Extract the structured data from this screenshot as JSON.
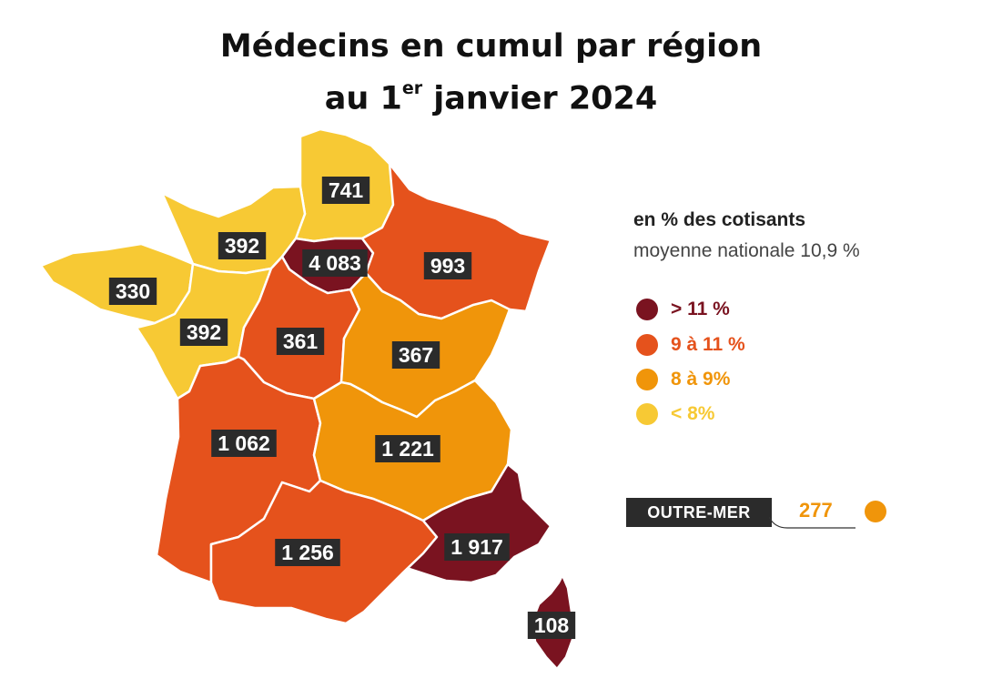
{
  "title": {
    "line1": "Médecins en cumul par région",
    "line2_prefix": "au 1",
    "line2_sup": "er",
    "line2_suffix": " janvier 2024"
  },
  "colors": {
    "over_11": "#7a1320",
    "from_9_to_11": "#e5521c",
    "from_8_to_9": "#f0950a",
    "under_8": "#f7c934"
  },
  "legend": {
    "heading": "en % des cotisants",
    "subheading": "moyenne nationale 10,9 %",
    "items": [
      {
        "label": "> 11 %",
        "color": "#7a1320"
      },
      {
        "label": "9 à 11 %",
        "color": "#e5521c"
      },
      {
        "label": "8 à 9%",
        "color": "#f0950a"
      },
      {
        "label": "< 8%",
        "color": "#f7c934"
      }
    ]
  },
  "regions": [
    {
      "id": "hauts-de-france",
      "value": "741",
      "color": "#f7c934"
    },
    {
      "id": "normandie",
      "value": "392",
      "color": "#f7c934"
    },
    {
      "id": "ile-de-france",
      "value": "4 083",
      "color": "#7a1320"
    },
    {
      "id": "grand-est",
      "value": "993",
      "color": "#e5521c"
    },
    {
      "id": "bretagne",
      "value": "330",
      "color": "#f7c934"
    },
    {
      "id": "pays-de-la-loire",
      "value": "392",
      "color": "#f7c934"
    },
    {
      "id": "centre-val-de-loire",
      "value": "361",
      "color": "#e5521c"
    },
    {
      "id": "bourgogne-franche-comte",
      "value": "367",
      "color": "#f0950a"
    },
    {
      "id": "nouvelle-aquitaine",
      "value": "1 062",
      "color": "#e5521c"
    },
    {
      "id": "auvergne-rhone-alpes",
      "value": "1 221",
      "color": "#f0950a"
    },
    {
      "id": "occitanie",
      "value": "1 256",
      "color": "#e5521c"
    },
    {
      "id": "provence-alpes-cote-dazur",
      "value": "1 917",
      "color": "#7a1320"
    },
    {
      "id": "corse",
      "value": "108",
      "color": "#7a1320"
    }
  ],
  "outremer": {
    "label": "OUTRE-MER",
    "value": "277",
    "color": "#f0950a"
  }
}
